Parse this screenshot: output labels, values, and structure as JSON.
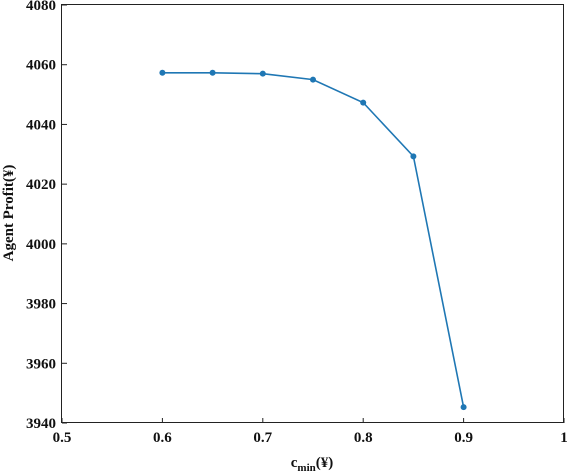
{
  "chart_data": {
    "type": "line",
    "xlabel_base": "c",
    "xlabel_sub": "min",
    "xlabel_unit": "(¥)",
    "ylabel": "Agent Profit(¥)",
    "xlim": [
      0.5,
      1.0
    ],
    "ylim": [
      3940,
      4080
    ],
    "x_ticks": [
      "0.5",
      "0.6",
      "0.7",
      "0.8",
      "0.9",
      "1"
    ],
    "y_ticks": [
      "3940",
      "3960",
      "3980",
      "4000",
      "4020",
      "4040",
      "4060",
      "4080"
    ],
    "grid": false,
    "series": [
      {
        "color": "#1f77b4",
        "x": [
          0.6,
          0.65,
          0.7,
          0.75,
          0.8,
          0.85,
          0.9
        ],
        "y": [
          4057.3,
          4057.3,
          4057.0,
          4055.0,
          4047.3,
          4029.3,
          3945.3
        ]
      }
    ]
  }
}
